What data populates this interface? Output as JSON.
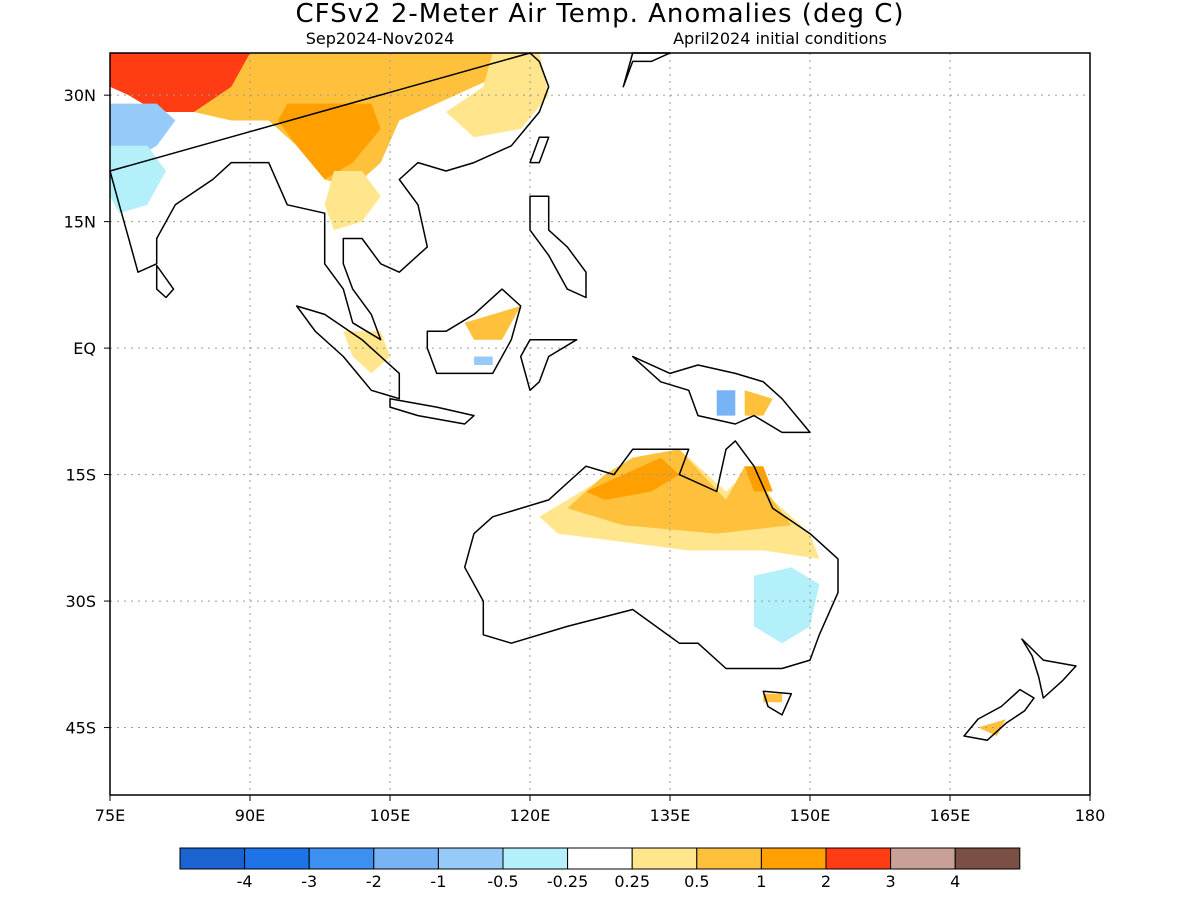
{
  "title": "CFSv2 2-Meter Air Temp. Anomalies (deg C)",
  "subtitle_left": "Sep2024-Nov2024",
  "subtitle_right": "April2024 initial conditions",
  "map": {
    "lon_range": [
      75,
      180
    ],
    "lat_range": [
      -53,
      35
    ],
    "lat_ticks": [
      {
        "value": 30,
        "label": "30N"
      },
      {
        "value": 15,
        "label": "15N"
      },
      {
        "value": 0,
        "label": "EQ"
      },
      {
        "value": -15,
        "label": "15S"
      },
      {
        "value": -30,
        "label": "30S"
      },
      {
        "value": -45,
        "label": "45S"
      }
    ],
    "lon_ticks": [
      {
        "value": 75,
        "label": "75E"
      },
      {
        "value": 90,
        "label": "90E"
      },
      {
        "value": 105,
        "label": "105E"
      },
      {
        "value": 120,
        "label": "120E"
      },
      {
        "value": 135,
        "label": "135E"
      },
      {
        "value": 150,
        "label": "150E"
      },
      {
        "value": 165,
        "label": "165E"
      },
      {
        "value": 180,
        "label": "180"
      }
    ],
    "grid": true
  },
  "colorbar": {
    "colors": [
      "#1a64d2",
      "#1f73e8",
      "#3c91f0",
      "#78b4f5",
      "#96caf8",
      "#b4f0fa",
      "#ffffff",
      "#ffe68c",
      "#ffc03c",
      "#ffa000",
      "#ff3c14",
      "#c8a096",
      "#7a5044"
    ],
    "labels": [
      "-4",
      "-3",
      "-2",
      "-1",
      "-0.5",
      "-0.25",
      "0.25",
      "0.5",
      "1",
      "2",
      "3",
      "4"
    ]
  },
  "regions": [
    {
      "name": "tibet-very-warm",
      "cat": 11,
      "pts": [
        [
          90,
          33
        ],
        [
          92,
          34
        ],
        [
          95,
          33.5
        ],
        [
          93,
          32
        ],
        [
          90,
          32
        ]
      ]
    },
    {
      "name": "north-india-hot",
      "cat": 10,
      "pts": [
        [
          75,
          35
        ],
        [
          90,
          35
        ],
        [
          96,
          34
        ],
        [
          96,
          31
        ],
        [
          92,
          30
        ],
        [
          88,
          29
        ],
        [
          84,
          28
        ],
        [
          80,
          28
        ],
        [
          77,
          30
        ],
        [
          75,
          31
        ]
      ]
    },
    {
      "name": "south-china-warm",
      "cat": 8,
      "pts": [
        [
          90,
          35
        ],
        [
          117,
          35
        ],
        [
          116,
          32
        ],
        [
          110,
          29
        ],
        [
          106,
          27
        ],
        [
          104,
          22
        ],
        [
          101,
          19
        ],
        [
          98,
          20
        ],
        [
          95,
          24
        ],
        [
          92,
          27
        ],
        [
          88,
          27
        ],
        [
          84,
          28
        ],
        [
          88,
          31
        ]
      ]
    },
    {
      "name": "burma-warmer",
      "cat": 9,
      "pts": [
        [
          94,
          29
        ],
        [
          103,
          29
        ],
        [
          104,
          26
        ],
        [
          101,
          22
        ],
        [
          98,
          20
        ],
        [
          95,
          24
        ],
        [
          93,
          27
        ]
      ]
    },
    {
      "name": "east-china-mild",
      "cat": 7,
      "pts": [
        [
          116,
          35
        ],
        [
          121,
          35
        ],
        [
          122,
          30
        ],
        [
          119,
          26
        ],
        [
          114,
          25
        ],
        [
          111,
          28
        ],
        [
          115,
          31
        ]
      ]
    },
    {
      "name": "indochina-mild",
      "cat": 7,
      "pts": [
        [
          99,
          21
        ],
        [
          102,
          21
        ],
        [
          104,
          18
        ],
        [
          102,
          15
        ],
        [
          99,
          14
        ],
        [
          98,
          17
        ]
      ]
    },
    {
      "name": "india-cool",
      "cat": 4,
      "pts": [
        [
          75,
          29
        ],
        [
          80,
          29
        ],
        [
          82,
          27
        ],
        [
          80,
          24
        ],
        [
          77,
          22
        ],
        [
          75,
          24
        ]
      ]
    },
    {
      "name": "india-cool-fringe",
      "cat": 5,
      "pts": [
        [
          75,
          24
        ],
        [
          79,
          24
        ],
        [
          81,
          21
        ],
        [
          79,
          17
        ],
        [
          76,
          16
        ],
        [
          75,
          18
        ]
      ]
    },
    {
      "name": "sumatra-mild",
      "cat": 7,
      "pts": [
        [
          100,
          2
        ],
        [
          104,
          2
        ],
        [
          105,
          -1
        ],
        [
          103,
          -3
        ],
        [
          101,
          -1
        ]
      ]
    },
    {
      "name": "borneo-warm",
      "cat": 8,
      "pts": [
        [
          113,
          3
        ],
        [
          119,
          5
        ],
        [
          117,
          1
        ],
        [
          114,
          1
        ]
      ]
    },
    {
      "name": "borneo-cool",
      "cat": 4,
      "pts": [
        [
          114,
          -1
        ],
        [
          116,
          -1
        ],
        [
          116,
          -2
        ],
        [
          114,
          -2
        ]
      ]
    },
    {
      "name": "png-cool",
      "cat": 3,
      "pts": [
        [
          140,
          -5
        ],
        [
          142,
          -5
        ],
        [
          142,
          -8
        ],
        [
          140,
          -8
        ]
      ]
    },
    {
      "name": "png-warm",
      "cat": 8,
      "pts": [
        [
          143,
          -5
        ],
        [
          146,
          -6
        ],
        [
          145,
          -8
        ],
        [
          143,
          -8
        ]
      ]
    },
    {
      "name": "aus-north-mild",
      "cat": 7,
      "pts": [
        [
          121,
          -20
        ],
        [
          127,
          -16
        ],
        [
          131,
          -13
        ],
        [
          136,
          -12
        ],
        [
          141,
          -17
        ],
        [
          144,
          -14
        ],
        [
          146,
          -18
        ],
        [
          150,
          -22
        ],
        [
          151,
          -25
        ],
        [
          145,
          -24
        ],
        [
          137,
          -24
        ],
        [
          130,
          -23
        ],
        [
          123,
          -22
        ]
      ]
    },
    {
      "name": "aus-north-warm",
      "cat": 8,
      "pts": [
        [
          124,
          -19
        ],
        [
          128,
          -15
        ],
        [
          131,
          -13
        ],
        [
          136,
          -12
        ],
        [
          141,
          -18
        ],
        [
          143,
          -14
        ],
        [
          146,
          -18
        ],
        [
          148,
          -21
        ],
        [
          140,
          -22
        ],
        [
          130,
          -21
        ]
      ]
    },
    {
      "name": "aus-north-warmer",
      "cat": 9,
      "pts": [
        [
          126,
          -17
        ],
        [
          130,
          -15
        ],
        [
          134,
          -13
        ],
        [
          136,
          -15
        ],
        [
          133,
          -17
        ],
        [
          128,
          -18
        ]
      ]
    },
    {
      "name": "aus-cape-warmer",
      "cat": 9,
      "pts": [
        [
          143,
          -14
        ],
        [
          145,
          -14
        ],
        [
          146,
          -17
        ],
        [
          144,
          -17
        ]
      ]
    },
    {
      "name": "aus-se-cool",
      "cat": 5,
      "pts": [
        [
          144,
          -27
        ],
        [
          148,
          -26
        ],
        [
          151,
          -28
        ],
        [
          150,
          -33
        ],
        [
          147,
          -35
        ],
        [
          144,
          -33
        ]
      ]
    },
    {
      "name": "tasmania-warm",
      "cat": 8,
      "pts": [
        [
          145,
          -41
        ],
        [
          147,
          -41
        ],
        [
          147,
          -42
        ],
        [
          145,
          -42
        ]
      ]
    },
    {
      "name": "nz-warm",
      "cat": 8,
      "pts": [
        [
          168,
          -45
        ],
        [
          171,
          -44
        ],
        [
          170,
          -46
        ]
      ]
    }
  ],
  "coast": [
    {
      "name": "asia-mainland",
      "pts": [
        [
          75,
          21
        ],
        [
          76,
          17
        ],
        [
          77,
          13
        ],
        [
          78,
          9
        ],
        [
          80,
          10
        ],
        [
          80,
          13
        ],
        [
          82,
          17
        ],
        [
          86,
          20
        ],
        [
          88,
          22
        ],
        [
          90,
          22
        ],
        [
          92,
          22
        ],
        [
          94,
          17
        ],
        [
          98,
          16
        ],
        [
          98,
          10
        ],
        [
          100,
          7
        ],
        [
          101,
          3
        ],
        [
          104,
          1
        ],
        [
          103,
          4
        ],
        [
          101,
          7
        ],
        [
          100,
          10
        ],
        [
          100,
          13
        ],
        [
          102,
          13
        ],
        [
          104,
          10
        ],
        [
          106,
          9
        ],
        [
          109,
          12
        ],
        [
          108,
          17
        ],
        [
          106,
          20
        ],
        [
          108,
          22
        ],
        [
          111,
          21
        ],
        [
          114,
          22
        ],
        [
          118,
          24
        ],
        [
          121,
          28
        ],
        [
          122,
          31
        ],
        [
          121,
          34
        ],
        [
          120,
          35
        ]
      ]
    },
    {
      "name": "sri-lanka",
      "pts": [
        [
          80,
          9.8
        ],
        [
          81.8,
          7
        ],
        [
          81,
          6
        ],
        [
          80,
          7
        ]
      ]
    },
    {
      "name": "sumatra",
      "pts": [
        [
          95,
          5
        ],
        [
          98,
          4
        ],
        [
          102,
          1
        ],
        [
          106,
          -3
        ],
        [
          106,
          -6
        ],
        [
          103,
          -5
        ],
        [
          100,
          -1
        ],
        [
          97,
          2
        ]
      ]
    },
    {
      "name": "java",
      "pts": [
        [
          105,
          -6
        ],
        [
          110,
          -7
        ],
        [
          114,
          -8
        ],
        [
          113,
          -9
        ],
        [
          108,
          -8
        ],
        [
          105,
          -7
        ]
      ]
    },
    {
      "name": "borneo",
      "pts": [
        [
          109,
          2
        ],
        [
          111,
          2
        ],
        [
          114,
          4
        ],
        [
          117,
          7
        ],
        [
          119,
          5
        ],
        [
          118,
          1
        ],
        [
          116,
          -3
        ],
        [
          113,
          -3
        ],
        [
          110,
          -3
        ],
        [
          109,
          0
        ]
      ]
    },
    {
      "name": "sulawesi",
      "pts": [
        [
          119,
          -1
        ],
        [
          120,
          1
        ],
        [
          125,
          1
        ],
        [
          122,
          -1
        ],
        [
          121,
          -4
        ],
        [
          120,
          -5
        ]
      ]
    },
    {
      "name": "philippines",
      "pts": [
        [
          120,
          18
        ],
        [
          122,
          18
        ],
        [
          122,
          14
        ],
        [
          124,
          12
        ],
        [
          126,
          9
        ],
        [
          126,
          6
        ],
        [
          124,
          7
        ],
        [
          122,
          11
        ],
        [
          120,
          14
        ]
      ]
    },
    {
      "name": "taiwan",
      "pts": [
        [
          120,
          22
        ],
        [
          121,
          25
        ],
        [
          122,
          25
        ],
        [
          121,
          22
        ]
      ]
    },
    {
      "name": "new-guinea",
      "pts": [
        [
          131,
          -1
        ],
        [
          135,
          -3
        ],
        [
          138,
          -2
        ],
        [
          142,
          -3
        ],
        [
          145,
          -4
        ],
        [
          147,
          -6
        ],
        [
          150,
          -10
        ],
        [
          147,
          -10
        ],
        [
          144,
          -8
        ],
        [
          142,
          -9
        ],
        [
          138,
          -8
        ],
        [
          137,
          -5
        ],
        [
          134,
          -4
        ],
        [
          132,
          -2
        ]
      ]
    },
    {
      "name": "australia",
      "pts": [
        [
          114,
          -22
        ],
        [
          116,
          -20
        ],
        [
          122,
          -18
        ],
        [
          124,
          -16
        ],
        [
          126,
          -14
        ],
        [
          129,
          -15
        ],
        [
          131,
          -12
        ],
        [
          137,
          -12
        ],
        [
          136,
          -15
        ],
        [
          140,
          -17
        ],
        [
          141,
          -12
        ],
        [
          142,
          -11
        ],
        [
          144,
          -14
        ],
        [
          146,
          -19
        ],
        [
          150,
          -22
        ],
        [
          153,
          -25
        ],
        [
          153,
          -29
        ],
        [
          151,
          -34
        ],
        [
          150,
          -37
        ],
        [
          147,
          -38
        ],
        [
          144,
          -38
        ],
        [
          141,
          -38
        ],
        [
          138,
          -35
        ],
        [
          136,
          -35
        ],
        [
          131,
          -31
        ],
        [
          124,
          -33
        ],
        [
          118,
          -35
        ],
        [
          115,
          -34
        ],
        [
          115,
          -30
        ],
        [
          113,
          -26
        ]
      ]
    },
    {
      "name": "tasmania",
      "pts": [
        [
          145,
          -40.7
        ],
        [
          148,
          -41
        ],
        [
          147,
          -43.5
        ],
        [
          145.5,
          -42.5
        ]
      ]
    },
    {
      "name": "nz-north",
      "pts": [
        [
          172.7,
          -34.5
        ],
        [
          175,
          -37
        ],
        [
          178.5,
          -37.7
        ],
        [
          177,
          -39.5
        ],
        [
          175,
          -41.5
        ],
        [
          174.5,
          -39
        ],
        [
          173.8,
          -36.5
        ]
      ]
    },
    {
      "name": "nz-south",
      "pts": [
        [
          172.5,
          -40.5
        ],
        [
          174,
          -41.5
        ],
        [
          173,
          -43
        ],
        [
          171,
          -44.5
        ],
        [
          169,
          -46.5
        ],
        [
          166.5,
          -46
        ],
        [
          168,
          -44
        ],
        [
          170.5,
          -42.5
        ]
      ]
    },
    {
      "name": "japan",
      "pts": [
        [
          130,
          31
        ],
        [
          131,
          34
        ],
        [
          133,
          34
        ],
        [
          135,
          35
        ],
        [
          131,
          35
        ]
      ]
    }
  ]
}
